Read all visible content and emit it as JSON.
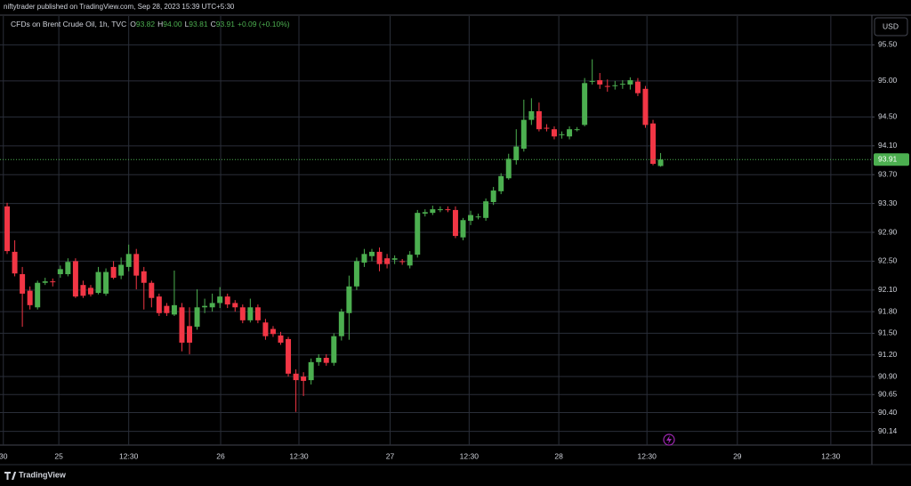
{
  "header": {
    "publisher": "niftytrader published on TradingView.com, Sep 28, 2023 15:39 UTC+5:30",
    "logo": "TradingView",
    "currency_button": "USD"
  },
  "chart_data": {
    "type": "candlestick",
    "title": "CFDs on Brent Crude Oil, 1h, TVC",
    "ohlc_legend": [
      {
        "label": "O",
        "value": "93.82"
      },
      {
        "label": "H",
        "value": "94.00"
      },
      {
        "label": "L",
        "value": "93.81"
      },
      {
        "label": "C",
        "value": "93.91"
      }
    ],
    "change": "+0.09 (+0.10%)",
    "up_color": "#4caf50",
    "down_color": "#f23645",
    "x": [
      0,
      1,
      2,
      3,
      4,
      5,
      6,
      7,
      8,
      9,
      10,
      11,
      12,
      13,
      14,
      15,
      16,
      17,
      18,
      19,
      20,
      21,
      22,
      23,
      24,
      25,
      26,
      27,
      28,
      29,
      30,
      31,
      32,
      33,
      34,
      35,
      36,
      37,
      38,
      39,
      40,
      41,
      42,
      43,
      44,
      45,
      46,
      47,
      48,
      49,
      50,
      51,
      52,
      53,
      54,
      55,
      56,
      57,
      58,
      59,
      60,
      61,
      62,
      63,
      64,
      65,
      66,
      67,
      68,
      69,
      70,
      71,
      72,
      73,
      74,
      75,
      76,
      77,
      78,
      79,
      80,
      81,
      82,
      83,
      84,
      85,
      86
    ],
    "open": [
      93.26,
      92.63,
      92.32,
      92.09,
      91.86,
      92.2,
      92.22,
      92.32,
      92.32,
      92.5,
      92.17,
      92.13,
      92.06,
      92.05,
      92.42,
      92.3,
      92.42,
      92.6,
      92.36,
      92.2,
      92.01,
      91.88,
      91.76,
      91.86,
      91.6,
      91.59,
      91.86,
      91.86,
      91.92,
      92.01,
      91.92,
      91.86,
      91.68,
      91.86,
      91.65,
      91.56,
      91.47,
      91.42,
      90.94,
      90.9,
      90.85,
      91.1,
      91.16,
      91.09,
      91.46,
      91.78,
      92.15,
      92.48,
      92.57,
      92.63,
      92.54,
      92.52,
      92.5,
      92.44,
      92.59,
      93.16,
      93.17,
      93.21,
      93.22,
      93.21,
      92.83,
      93.06,
      93.11,
      93.1,
      93.32,
      93.47,
      93.65,
      93.9,
      94.06,
      94.46,
      94.58,
      94.35,
      94.33,
      94.25,
      94.23,
      94.32,
      94.39,
      94.99,
      95.01,
      94.93,
      94.93,
      94.95,
      94.95,
      94.99,
      94.89,
      94.41,
      93.82
    ],
    "high": [
      93.31,
      92.79,
      92.42,
      92.15,
      92.23,
      92.27,
      92.26,
      92.44,
      92.54,
      92.54,
      92.23,
      92.17,
      92.42,
      92.4,
      92.5,
      92.55,
      92.73,
      92.67,
      92.42,
      92.23,
      92.05,
      91.92,
      92.37,
      91.92,
      91.86,
      92.11,
      91.98,
      92.05,
      92.14,
      92.05,
      91.96,
      91.9,
      91.98,
      91.9,
      91.7,
      91.6,
      91.52,
      91.45,
      91.0,
      90.96,
      91.15,
      91.21,
      91.21,
      91.5,
      91.84,
      92.3,
      92.55,
      92.67,
      92.67,
      92.69,
      92.6,
      92.58,
      92.53,
      92.64,
      93.21,
      93.22,
      93.27,
      93.26,
      93.26,
      93.26,
      93.1,
      93.2,
      93.16,
      93.37,
      93.53,
      93.72,
      93.99,
      94.33,
      94.74,
      94.76,
      94.7,
      94.4,
      94.37,
      94.3,
      94.37,
      94.36,
      95.04,
      95.3,
      95.11,
      95.02,
      95.0,
      95.01,
      95.05,
      95.04,
      94.93,
      94.46,
      94.0
    ],
    "low": [
      92.6,
      92.29,
      91.59,
      91.83,
      91.83,
      92.17,
      92.15,
      92.27,
      92.29,
      91.99,
      91.99,
      92.01,
      92.04,
      92.02,
      92.25,
      92.25,
      92.36,
      92.11,
      91.83,
      91.86,
      91.74,
      91.74,
      91.74,
      91.25,
      91.21,
      91.55,
      91.78,
      91.8,
      91.85,
      91.85,
      91.8,
      91.64,
      91.65,
      91.64,
      91.41,
      91.45,
      91.34,
      90.9,
      90.41,
      90.63,
      90.79,
      91.05,
      91.05,
      91.05,
      91.4,
      91.41,
      92.1,
      92.42,
      92.5,
      92.36,
      92.4,
      92.46,
      92.45,
      92.4,
      92.55,
      93.12,
      93.14,
      93.18,
      93.18,
      92.82,
      92.79,
      93.0,
      93.08,
      93.06,
      93.28,
      93.43,
      93.63,
      93.84,
      94.02,
      94.39,
      94.3,
      94.3,
      94.19,
      94.2,
      94.19,
      94.3,
      94.37,
      94.95,
      94.89,
      94.85,
      94.88,
      94.89,
      94.88,
      94.79,
      94.35,
      93.83,
      93.81
    ],
    "close": [
      92.64,
      92.33,
      92.05,
      91.89,
      92.2,
      92.22,
      92.21,
      92.39,
      92.49,
      92.01,
      92.02,
      92.04,
      92.35,
      92.35,
      92.27,
      92.45,
      92.6,
      92.3,
      92.2,
      91.99,
      91.78,
      91.78,
      91.89,
      91.37,
      91.37,
      91.86,
      91.88,
      91.92,
      92.01,
      91.9,
      91.86,
      91.68,
      91.86,
      91.68,
      91.46,
      91.49,
      91.37,
      90.94,
      90.85,
      90.84,
      91.1,
      91.16,
      91.09,
      91.46,
      91.8,
      92.15,
      92.5,
      92.6,
      92.63,
      92.46,
      92.46,
      92.54,
      92.49,
      92.59,
      93.17,
      93.18,
      93.22,
      93.22,
      93.21,
      92.85,
      93.07,
      93.14,
      93.12,
      93.33,
      93.48,
      93.68,
      93.92,
      94.09,
      94.46,
      94.58,
      94.33,
      94.34,
      94.23,
      94.26,
      94.33,
      94.33,
      94.97,
      95.0,
      94.95,
      94.92,
      94.94,
      94.96,
      95.01,
      94.83,
      94.39,
      93.85,
      93.91
    ],
    "xlim": [
      -0.94,
      113.8
    ],
    "xticks": [
      {
        "value": -0.5,
        "label": "30"
      },
      {
        "value": 6.8,
        "label": "25"
      },
      {
        "value": 16.0,
        "label": "12:30"
      },
      {
        "value": 28.1,
        "label": "26"
      },
      {
        "value": 38.4,
        "label": "12:30"
      },
      {
        "value": 50.4,
        "label": "27"
      },
      {
        "value": 60.8,
        "label": "12:30"
      },
      {
        "value": 72.6,
        "label": "28"
      },
      {
        "value": 84.2,
        "label": "12:30"
      },
      {
        "value": 96.1,
        "label": "29"
      },
      {
        "value": 108.4,
        "label": "12:30"
      }
    ],
    "ylim": [
      89.95,
      95.9
    ],
    "yticks": [
      {
        "value": 95.5,
        "label": "95.50"
      },
      {
        "value": 95,
        "label": "95.00"
      },
      {
        "value": 94.5,
        "label": "94.50"
      },
      {
        "value": 94.1,
        "label": "94.10"
      },
      {
        "value": 93.7,
        "label": "93.70"
      },
      {
        "value": 93.3,
        "label": "93.30"
      },
      {
        "value": 92.9,
        "label": "92.90"
      },
      {
        "value": 92.5,
        "label": "92.50"
      },
      {
        "value": 92.1,
        "label": "92.10"
      },
      {
        "value": 91.8,
        "label": "91.80"
      },
      {
        "value": 91.5,
        "label": "91.50"
      },
      {
        "value": 91.2,
        "label": "91.20"
      },
      {
        "value": 90.9,
        "label": "90.90"
      },
      90.65,
      {
        "value": 90.4,
        "label": "90.40"
      },
      90.14
    ],
    "grid": true
  }
}
